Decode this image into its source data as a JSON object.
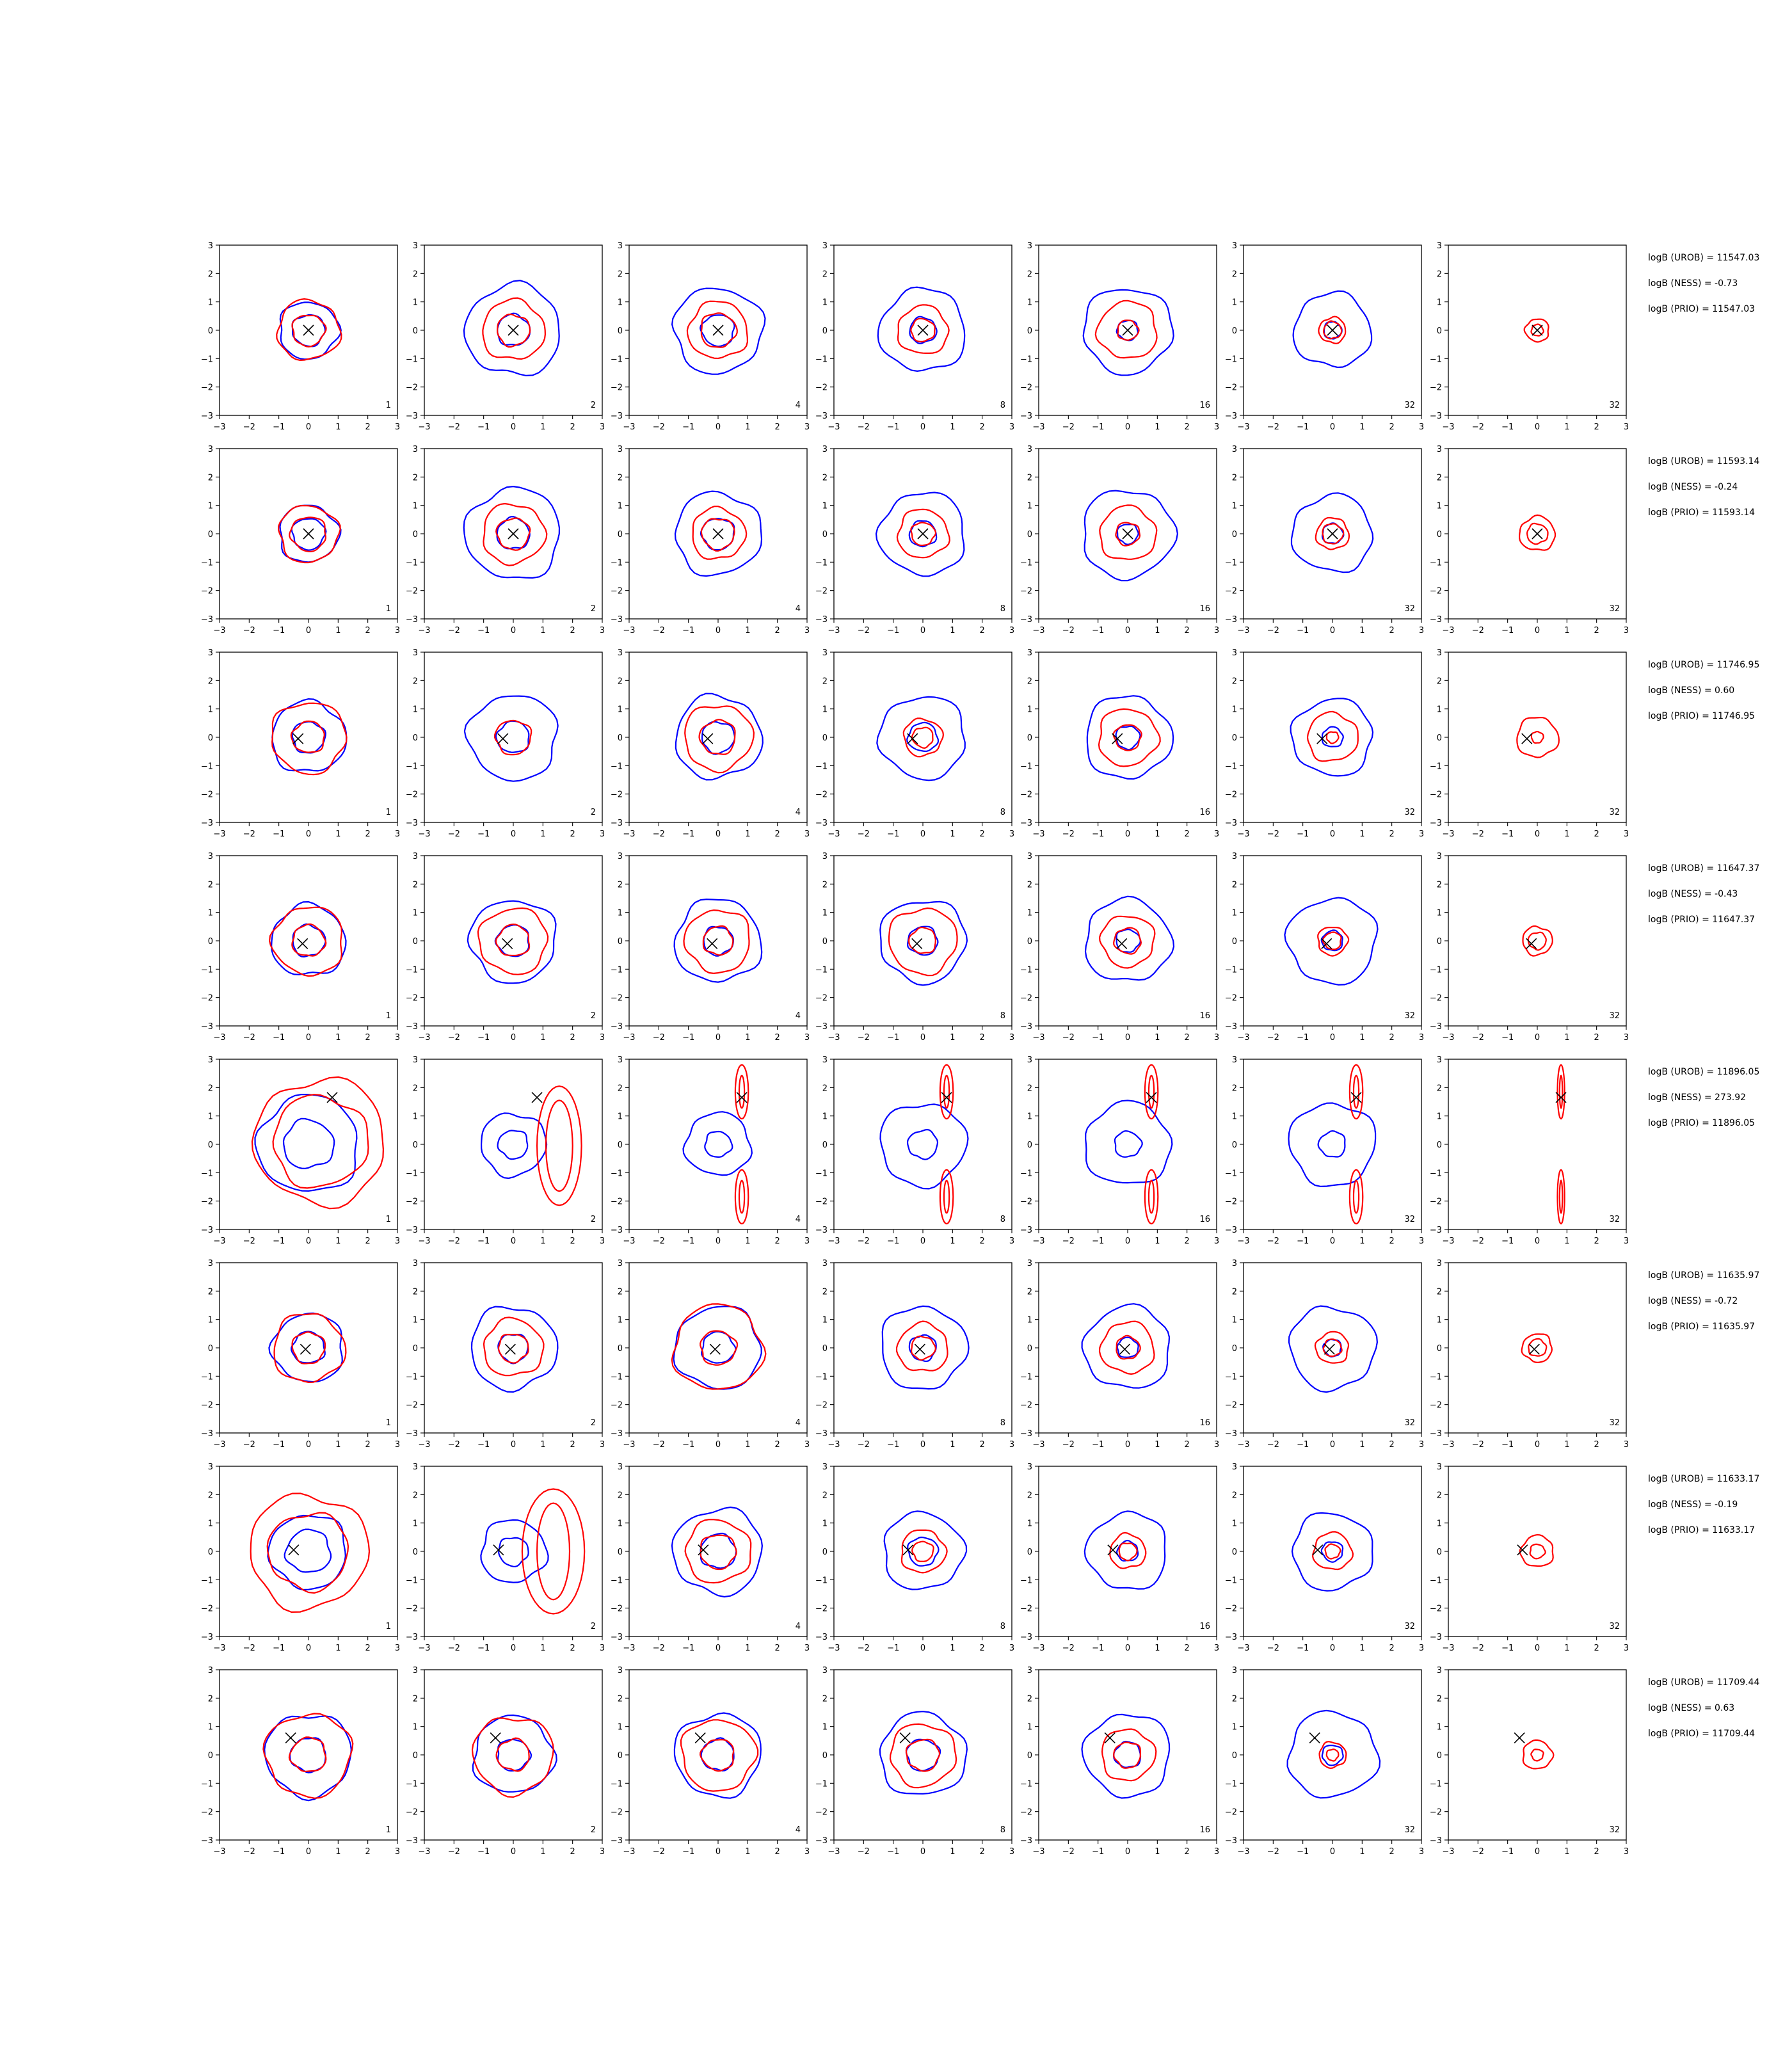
{
  "chart_data": {
    "type": "contour-grid",
    "xlim": [
      -3,
      3
    ],
    "ylim": [
      -3,
      3
    ],
    "ticks": [
      -3,
      -2,
      -1,
      0,
      1,
      2,
      3
    ],
    "tick_labels": [
      "−3",
      "−2",
      "−1",
      "0",
      "1",
      "2",
      "3"
    ],
    "grid": false,
    "colors": {
      "blue_contours": "#0000ff",
      "red_contours": "#ff0000",
      "marker": "#000000"
    },
    "column_labels": [
      "1",
      "2",
      "4",
      "8",
      "16",
      "32",
      "32"
    ],
    "marker_symbol": "x",
    "rows": [
      {
        "marker": [
          0.0,
          0.0
        ],
        "annotations": [
          "logB (UROB) = 11547.03",
          "logB (NESS) = -0.73",
          "logB (PRIO) = 11547.03"
        ],
        "panels": [
          {
            "blue": [
              1.0,
              0.55
            ],
            "red": [
              1.05,
              0.55
            ]
          },
          {
            "blue": [
              1.6,
              0.55
            ],
            "red": [
              1.05,
              0.55
            ]
          },
          {
            "blue": [
              1.5,
              0.55
            ],
            "red": [
              1.0,
              0.6
            ]
          },
          {
            "blue": [
              1.45,
              0.45
            ],
            "red": [
              0.85,
              0.4
            ]
          },
          {
            "blue": [
              1.5,
              0.35
            ],
            "red": [
              1.0,
              0.35
            ]
          },
          {
            "blue": [
              1.3,
              0.3
            ],
            "red": [
              0.45,
              0.3
            ]
          },
          {
            "blue": [],
            "red": [
              0.4,
              0.2
            ]
          }
        ]
      },
      {
        "marker": [
          0.0,
          0.0
        ],
        "annotations": [
          "logB (UROB) = 11593.14",
          "logB (NESS) = -0.24",
          "logB (PRIO) = 11593.14"
        ],
        "panels": [
          {
            "blue": [
              1.0,
              0.55
            ],
            "red": [
              1.0,
              0.6
            ]
          },
          {
            "blue": [
              1.6,
              0.55
            ],
            "red": [
              1.05,
              0.55
            ]
          },
          {
            "blue": [
              1.45,
              0.55
            ],
            "red": [
              0.9,
              0.55
            ]
          },
          {
            "blue": [
              1.45,
              0.45
            ],
            "red": [
              0.85,
              0.4
            ]
          },
          {
            "blue": [
              1.55,
              0.35
            ],
            "red": [
              0.95,
              0.4
            ]
          },
          {
            "blue": [
              1.35,
              0.35
            ],
            "red": [
              0.55,
              0.35
            ]
          },
          {
            "blue": [],
            "red": [
              0.6,
              0.35
            ]
          }
        ]
      },
      {
        "marker": [
          -0.35,
          -0.05
        ],
        "annotations": [
          "logB (UROB) = 11746.95",
          "logB (NESS) = 0.60",
          "logB (PRIO) = 11746.95"
        ],
        "panels": [
          {
            "blue": [
              1.25,
              0.55
            ],
            "red": [
              1.25,
              0.55
            ]
          },
          {
            "blue": [
              1.5,
              0.55
            ],
            "red": [
              0.6
            ]
          },
          {
            "blue": [
              1.45,
              0.55
            ],
            "red": [
              1.15,
              0.6
            ]
          },
          {
            "blue": [
              1.45,
              0.5
            ],
            "red": [
              0.65,
              0.35
            ]
          },
          {
            "blue": [
              1.45,
              0.4
            ],
            "red": [
              1.0,
              0.45
            ]
          },
          {
            "blue": [
              1.35,
              0.35
            ],
            "red": [
              0.85,
              0.2
            ]
          },
          {
            "blue": [],
            "red": [
              0.7,
              0.2
            ]
          }
        ]
      },
      {
        "marker": [
          -0.2,
          -0.1
        ],
        "annotations": [
          "logB (UROB) = 11647.37",
          "logB (NESS) = -0.43",
          "logB (PRIO) = 11647.37"
        ],
        "panels": [
          {
            "blue": [
              1.25,
              0.55
            ],
            "red": [
              1.2,
              0.55
            ]
          },
          {
            "blue": [
              1.45,
              0.55
            ],
            "red": [
              1.15,
              0.55
            ]
          },
          {
            "blue": [
              1.45,
              0.5
            ],
            "red": [
              1.1,
              0.5
            ]
          },
          {
            "blue": [
              1.45,
              0.5
            ],
            "red": [
              1.15,
              0.45
            ]
          },
          {
            "blue": [
              1.45,
              0.4
            ],
            "red": [
              0.9,
              0.45
            ]
          },
          {
            "blue": [
              1.5,
              0.35
            ],
            "red": [
              0.5,
              0.3
            ]
          },
          {
            "blue": [],
            "red": [
              0.5,
              0.3
            ]
          }
        ]
      },
      {
        "marker": [
          0.8,
          1.65
        ],
        "annotations": [
          "logB (UROB) = 11896.05",
          "logB (NESS) = 273.92",
          "logB (PRIO) = 11896.05"
        ],
        "panels": [
          {
            "blue": [
              1.7,
              0.85
            ],
            "red": [
              2.2,
              1.6
            ]
          },
          {
            "blue": [
              1.1,
              0.5
            ],
            "red": []
          },
          {
            "blue": [
              1.1,
              0.45
            ],
            "red": []
          },
          {
            "blue": [
              1.45,
              0.5
            ],
            "red": []
          },
          {
            "blue": [
              1.45,
              0.45
            ],
            "red": []
          },
          {
            "blue": [
              1.45,
              0.45
            ],
            "red": []
          },
          {
            "blue": [],
            "red": []
          }
        ]
      },
      {
        "marker": [
          -0.1,
          -0.05
        ],
        "annotations": [
          "logB (UROB) = 11635.97",
          "logB (NESS) = -0.72",
          "logB (PRIO) = 11635.97"
        ],
        "panels": [
          {
            "blue": [
              1.2,
              0.55
            ],
            "red": [
              1.2,
              0.55
            ]
          },
          {
            "blue": [
              1.45,
              0.5
            ],
            "red": [
              1.0,
              0.5
            ]
          },
          {
            "blue": [
              1.45,
              0.55
            ],
            "red": [
              1.5,
              0.6
            ]
          },
          {
            "blue": [
              1.45,
              0.45
            ],
            "red": [
              0.85,
              0.4
            ]
          },
          {
            "blue": [
              1.45,
              0.35
            ],
            "red": [
              0.9,
              0.4
            ]
          },
          {
            "blue": [
              1.45,
              0.3
            ],
            "red": [
              0.55,
              0.3
            ]
          },
          {
            "blue": [],
            "red": [
              0.5,
              0.3
            ]
          }
        ]
      },
      {
        "marker": [
          -0.5,
          0.05
        ],
        "annotations": [
          "logB (UROB) = 11633.17",
          "logB (NESS) = -0.19",
          "logB (PRIO) = 11633.17"
        ],
        "panels": [
          {
            "blue": [
              1.3,
              0.75
            ],
            "red": [
              2.0,
              1.35
            ]
          },
          {
            "blue": [
              1.1,
              0.5
            ],
            "red": []
          },
          {
            "blue": [
              1.5,
              0.6
            ],
            "red": [
              1.1,
              0.6
            ]
          },
          {
            "blue": [
              1.35,
              0.5
            ],
            "red": [
              0.75,
              0.35
            ]
          },
          {
            "blue": [
              1.35,
              0.35
            ],
            "red": [
              0.6,
              0.3
            ]
          },
          {
            "blue": [
              1.35,
              0.35
            ],
            "red": [
              0.65,
              0.25
            ]
          },
          {
            "blue": [],
            "red": [
              0.55,
              0.25
            ]
          }
        ]
      },
      {
        "marker": [
          -0.6,
          0.6
        ],
        "annotations": [
          "logB (UROB) = 11709.44",
          "logB (NESS) = 0.63",
          "logB (PRIO) = 11709.44"
        ],
        "panels": [
          {
            "blue": [
              1.45,
              0.6
            ],
            "red": [
              1.45,
              0.6
            ]
          },
          {
            "blue": [
              1.35,
              0.55
            ],
            "red": [
              1.35,
              0.55
            ]
          },
          {
            "blue": [
              1.45,
              0.55
            ],
            "red": [
              1.25,
              0.55
            ]
          },
          {
            "blue": [
              1.45,
              0.55
            ],
            "red": [
              1.1,
              0.55
            ]
          },
          {
            "blue": [
              1.45,
              0.45
            ],
            "red": [
              0.9,
              0.45
            ]
          },
          {
            "blue": [
              1.5,
              0.35
            ],
            "red": [
              0.45,
              0.2
            ]
          },
          {
            "blue": [],
            "red": [
              0.5,
              0.2
            ]
          }
        ]
      }
    ]
  }
}
